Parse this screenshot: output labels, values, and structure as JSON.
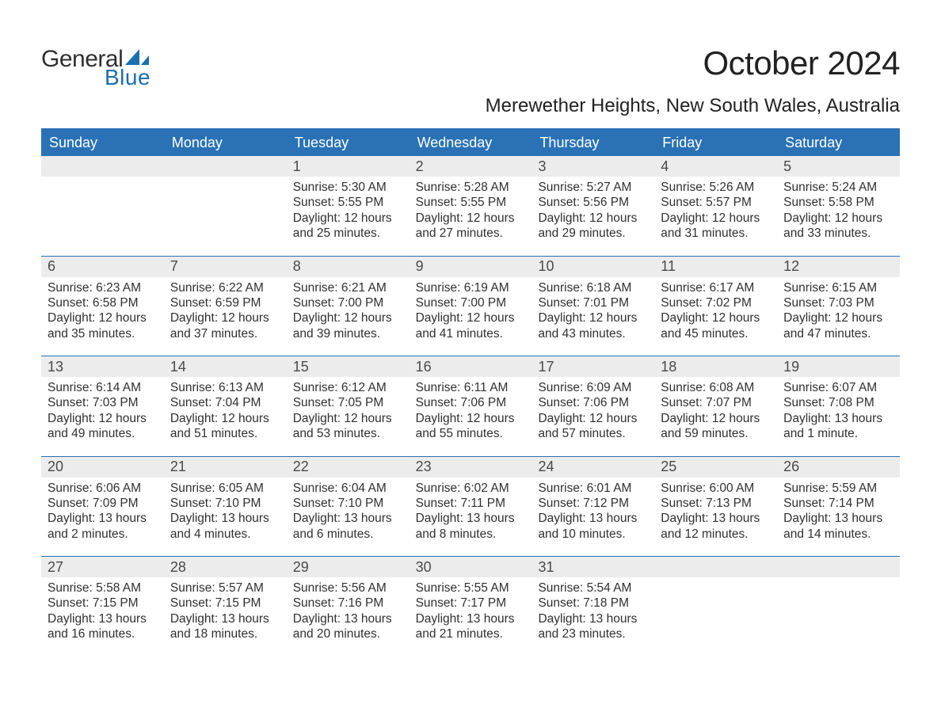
{
  "colors": {
    "header_bg": "#2a72b5",
    "header_text": "#ffffff",
    "rule": "#2a6fb2",
    "daynum_bg": "#ececec",
    "daynum_text": "#4a4a4a",
    "body_text": "#303030",
    "logo_blue": "#1b6fb0",
    "logo_dark": "#303030",
    "page_bg": "#ffffff"
  },
  "typography": {
    "month_title_pt": 42,
    "location_pt": 24,
    "day_header_pt": 18,
    "daynum_pt": 18,
    "body_pt": 15.5,
    "font_family": "Arial"
  },
  "logo": {
    "text1": "General",
    "text2": "Blue"
  },
  "title": "October 2024",
  "location": "Merewether Heights, New South Wales, Australia",
  "day_headers": [
    "Sunday",
    "Monday",
    "Tuesday",
    "Wednesday",
    "Thursday",
    "Friday",
    "Saturday"
  ],
  "weeks": [
    [
      {
        "n": "",
        "sunrise": "",
        "sunset": "",
        "daylight": ""
      },
      {
        "n": "",
        "sunrise": "",
        "sunset": "",
        "daylight": ""
      },
      {
        "n": "1",
        "sunrise": "Sunrise: 5:30 AM",
        "sunset": "Sunset: 5:55 PM",
        "daylight": "Daylight: 12 hours and 25 minutes."
      },
      {
        "n": "2",
        "sunrise": "Sunrise: 5:28 AM",
        "sunset": "Sunset: 5:55 PM",
        "daylight": "Daylight: 12 hours and 27 minutes."
      },
      {
        "n": "3",
        "sunrise": "Sunrise: 5:27 AM",
        "sunset": "Sunset: 5:56 PM",
        "daylight": "Daylight: 12 hours and 29 minutes."
      },
      {
        "n": "4",
        "sunrise": "Sunrise: 5:26 AM",
        "sunset": "Sunset: 5:57 PM",
        "daylight": "Daylight: 12 hours and 31 minutes."
      },
      {
        "n": "5",
        "sunrise": "Sunrise: 5:24 AM",
        "sunset": "Sunset: 5:58 PM",
        "daylight": "Daylight: 12 hours and 33 minutes."
      }
    ],
    [
      {
        "n": "6",
        "sunrise": "Sunrise: 6:23 AM",
        "sunset": "Sunset: 6:58 PM",
        "daylight": "Daylight: 12 hours and 35 minutes."
      },
      {
        "n": "7",
        "sunrise": "Sunrise: 6:22 AM",
        "sunset": "Sunset: 6:59 PM",
        "daylight": "Daylight: 12 hours and 37 minutes."
      },
      {
        "n": "8",
        "sunrise": "Sunrise: 6:21 AM",
        "sunset": "Sunset: 7:00 PM",
        "daylight": "Daylight: 12 hours and 39 minutes."
      },
      {
        "n": "9",
        "sunrise": "Sunrise: 6:19 AM",
        "sunset": "Sunset: 7:00 PM",
        "daylight": "Daylight: 12 hours and 41 minutes."
      },
      {
        "n": "10",
        "sunrise": "Sunrise: 6:18 AM",
        "sunset": "Sunset: 7:01 PM",
        "daylight": "Daylight: 12 hours and 43 minutes."
      },
      {
        "n": "11",
        "sunrise": "Sunrise: 6:17 AM",
        "sunset": "Sunset: 7:02 PM",
        "daylight": "Daylight: 12 hours and 45 minutes."
      },
      {
        "n": "12",
        "sunrise": "Sunrise: 6:15 AM",
        "sunset": "Sunset: 7:03 PM",
        "daylight": "Daylight: 12 hours and 47 minutes."
      }
    ],
    [
      {
        "n": "13",
        "sunrise": "Sunrise: 6:14 AM",
        "sunset": "Sunset: 7:03 PM",
        "daylight": "Daylight: 12 hours and 49 minutes."
      },
      {
        "n": "14",
        "sunrise": "Sunrise: 6:13 AM",
        "sunset": "Sunset: 7:04 PM",
        "daylight": "Daylight: 12 hours and 51 minutes."
      },
      {
        "n": "15",
        "sunrise": "Sunrise: 6:12 AM",
        "sunset": "Sunset: 7:05 PM",
        "daylight": "Daylight: 12 hours and 53 minutes."
      },
      {
        "n": "16",
        "sunrise": "Sunrise: 6:11 AM",
        "sunset": "Sunset: 7:06 PM",
        "daylight": "Daylight: 12 hours and 55 minutes."
      },
      {
        "n": "17",
        "sunrise": "Sunrise: 6:09 AM",
        "sunset": "Sunset: 7:06 PM",
        "daylight": "Daylight: 12 hours and 57 minutes."
      },
      {
        "n": "18",
        "sunrise": "Sunrise: 6:08 AM",
        "sunset": "Sunset: 7:07 PM",
        "daylight": "Daylight: 12 hours and 59 minutes."
      },
      {
        "n": "19",
        "sunrise": "Sunrise: 6:07 AM",
        "sunset": "Sunset: 7:08 PM",
        "daylight": "Daylight: 13 hours and 1 minute."
      }
    ],
    [
      {
        "n": "20",
        "sunrise": "Sunrise: 6:06 AM",
        "sunset": "Sunset: 7:09 PM",
        "daylight": "Daylight: 13 hours and 2 minutes."
      },
      {
        "n": "21",
        "sunrise": "Sunrise: 6:05 AM",
        "sunset": "Sunset: 7:10 PM",
        "daylight": "Daylight: 13 hours and 4 minutes."
      },
      {
        "n": "22",
        "sunrise": "Sunrise: 6:04 AM",
        "sunset": "Sunset: 7:10 PM",
        "daylight": "Daylight: 13 hours and 6 minutes."
      },
      {
        "n": "23",
        "sunrise": "Sunrise: 6:02 AM",
        "sunset": "Sunset: 7:11 PM",
        "daylight": "Daylight: 13 hours and 8 minutes."
      },
      {
        "n": "24",
        "sunrise": "Sunrise: 6:01 AM",
        "sunset": "Sunset: 7:12 PM",
        "daylight": "Daylight: 13 hours and 10 minutes."
      },
      {
        "n": "25",
        "sunrise": "Sunrise: 6:00 AM",
        "sunset": "Sunset: 7:13 PM",
        "daylight": "Daylight: 13 hours and 12 minutes."
      },
      {
        "n": "26",
        "sunrise": "Sunrise: 5:59 AM",
        "sunset": "Sunset: 7:14 PM",
        "daylight": "Daylight: 13 hours and 14 minutes."
      }
    ],
    [
      {
        "n": "27",
        "sunrise": "Sunrise: 5:58 AM",
        "sunset": "Sunset: 7:15 PM",
        "daylight": "Daylight: 13 hours and 16 minutes."
      },
      {
        "n": "28",
        "sunrise": "Sunrise: 5:57 AM",
        "sunset": "Sunset: 7:15 PM",
        "daylight": "Daylight: 13 hours and 18 minutes."
      },
      {
        "n": "29",
        "sunrise": "Sunrise: 5:56 AM",
        "sunset": "Sunset: 7:16 PM",
        "daylight": "Daylight: 13 hours and 20 minutes."
      },
      {
        "n": "30",
        "sunrise": "Sunrise: 5:55 AM",
        "sunset": "Sunset: 7:17 PM",
        "daylight": "Daylight: 13 hours and 21 minutes."
      },
      {
        "n": "31",
        "sunrise": "Sunrise: 5:54 AM",
        "sunset": "Sunset: 7:18 PM",
        "daylight": "Daylight: 13 hours and 23 minutes."
      },
      {
        "n": "",
        "sunrise": "",
        "sunset": "",
        "daylight": ""
      },
      {
        "n": "",
        "sunrise": "",
        "sunset": "",
        "daylight": ""
      }
    ]
  ]
}
